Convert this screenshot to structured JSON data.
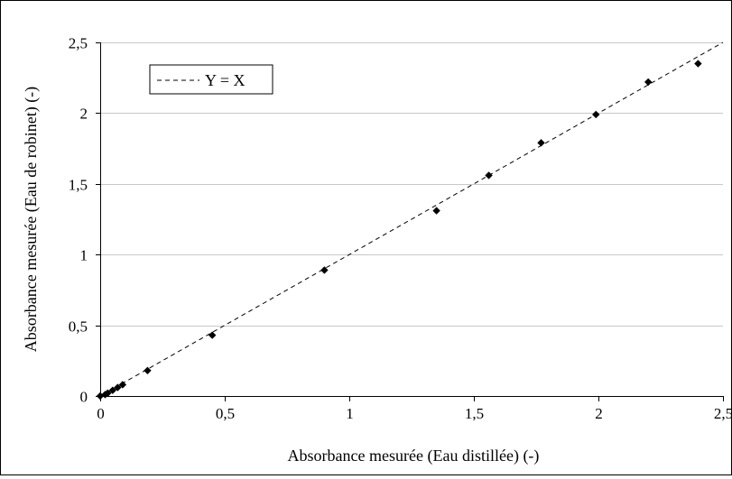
{
  "chart_data": {
    "type": "scatter",
    "title": "",
    "xlabel": "Absorbance mesurée (Eau distillée) (-)",
    "ylabel": "Absorbance mesurée (Eau de robinet) (-)",
    "xlim": [
      0,
      2.5
    ],
    "ylim": [
      0,
      2.5
    ],
    "grid": "horizontal",
    "legend_position": "top-left",
    "x_tick_labels": [
      "0",
      "0,5",
      "1",
      "1,5",
      "2",
      "2,5"
    ],
    "y_tick_labels": [
      "0",
      "0,5",
      "1",
      "1,5",
      "2",
      "2,5"
    ],
    "series": [
      {
        "marker": "diamond",
        "color": "#000000",
        "points": [
          [
            0.0,
            0.0
          ],
          [
            0.02,
            0.01
          ],
          [
            0.03,
            0.02
          ],
          [
            0.05,
            0.04
          ],
          [
            0.07,
            0.06
          ],
          [
            0.09,
            0.08
          ],
          [
            0.19,
            0.18
          ],
          [
            0.45,
            0.43
          ],
          [
            0.9,
            0.89
          ],
          [
            1.35,
            1.31
          ],
          [
            1.56,
            1.56
          ],
          [
            1.77,
            1.79
          ],
          [
            1.99,
            1.99
          ],
          [
            2.2,
            2.22
          ],
          [
            2.4,
            2.35
          ]
        ]
      },
      {
        "name": "Y = X",
        "line_style": "dashed",
        "color": "#000000",
        "points": [
          [
            0,
            0
          ],
          [
            2.5,
            2.5
          ]
        ]
      }
    ]
  }
}
